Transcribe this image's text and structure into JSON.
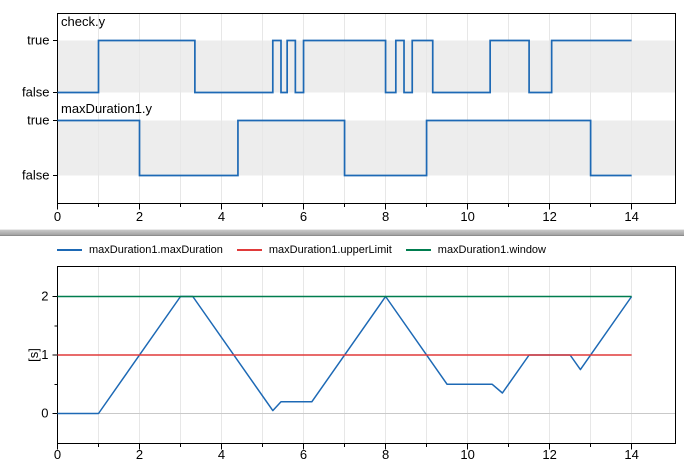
{
  "colors": {
    "signal_blue": "#1d69b5",
    "limit_red": "#e03a3a",
    "window_green": "#007d4f",
    "band_gray": "#ededed",
    "grid": "#e7e7e7",
    "zero_line": "#c9c9c9",
    "frame": "#000000"
  },
  "chart_data": [
    {
      "type": "line",
      "subtype": "boolean_step",
      "x_range": [
        0,
        15.07
      ],
      "x_major_ticks": [
        0,
        2,
        4,
        6,
        8,
        10,
        12,
        14
      ],
      "x_minor_ticks": [
        1,
        3,
        5,
        7,
        9,
        11,
        13
      ],
      "x_gridlines": [
        1,
        2,
        3,
        4,
        5,
        6,
        7,
        8,
        9,
        10,
        11,
        12,
        13,
        14
      ],
      "grid": true,
      "signals": [
        {
          "name": "check.y",
          "true_label": "true",
          "false_label": "false",
          "segments": [
            [
              0,
              1.0,
              false
            ],
            [
              1.0,
              3.35,
              true
            ],
            [
              3.35,
              5.25,
              false
            ],
            [
              5.25,
              5.45,
              true
            ],
            [
              5.45,
              5.6,
              false
            ],
            [
              5.6,
              5.8,
              true
            ],
            [
              5.8,
              6.0,
              false
            ],
            [
              6.0,
              8.0,
              true
            ],
            [
              8.0,
              8.25,
              false
            ],
            [
              8.25,
              8.45,
              true
            ],
            [
              8.45,
              8.65,
              false
            ],
            [
              8.65,
              9.15,
              true
            ],
            [
              9.15,
              10.55,
              false
            ],
            [
              10.55,
              11.5,
              true
            ],
            [
              11.5,
              12.05,
              false
            ],
            [
              12.05,
              14.0,
              true
            ]
          ]
        },
        {
          "name": "maxDuration1.y",
          "true_label": "true",
          "false_label": "false",
          "segments": [
            [
              0,
              2.0,
              true
            ],
            [
              2.0,
              4.4,
              false
            ],
            [
              4.4,
              7.0,
              true
            ],
            [
              7.0,
              9.0,
              false
            ],
            [
              9.0,
              13.0,
              true
            ],
            [
              13.0,
              14.0,
              false
            ]
          ]
        }
      ]
    },
    {
      "type": "line",
      "ylabel": "[s]",
      "x_range": [
        0,
        15.07
      ],
      "y_range": [
        -0.51,
        2.51
      ],
      "x_major_ticks": [
        0,
        2,
        4,
        6,
        8,
        10,
        12,
        14
      ],
      "x_minor_ticks": [
        1,
        3,
        5,
        7,
        9,
        11,
        13
      ],
      "x_gridlines": [
        1,
        2,
        3,
        4,
        5,
        6,
        7,
        8,
        9,
        10,
        11,
        12,
        13,
        14
      ],
      "y_major_ticks": [
        0,
        1,
        2
      ],
      "y_minor_ticks": [
        0.5,
        1.5
      ],
      "y_gridlines": [
        0
      ],
      "legend_position": "top",
      "series": [
        {
          "name": "maxDuration1.maxDuration",
          "color": "#1d69b5",
          "points": [
            [
              0,
              0
            ],
            [
              1,
              0
            ],
            [
              3,
              2
            ],
            [
              3.3,
              2
            ],
            [
              5.25,
              0.05
            ],
            [
              5.45,
              0.2
            ],
            [
              6.2,
              0.2
            ],
            [
              8,
              2
            ],
            [
              9.5,
              0.5
            ],
            [
              10.6,
              0.5
            ],
            [
              10.85,
              0.35
            ],
            [
              11.5,
              1
            ],
            [
              12.5,
              1
            ],
            [
              12.75,
              0.75
            ],
            [
              14,
              2
            ]
          ]
        },
        {
          "name": "maxDuration1.upperLimit",
          "color": "#e03a3a",
          "points": [
            [
              0,
              1
            ],
            [
              14,
              1
            ]
          ]
        },
        {
          "name": "maxDuration1.window",
          "color": "#007d4f",
          "points": [
            [
              0,
              2
            ],
            [
              14,
              2
            ]
          ]
        }
      ]
    }
  ]
}
